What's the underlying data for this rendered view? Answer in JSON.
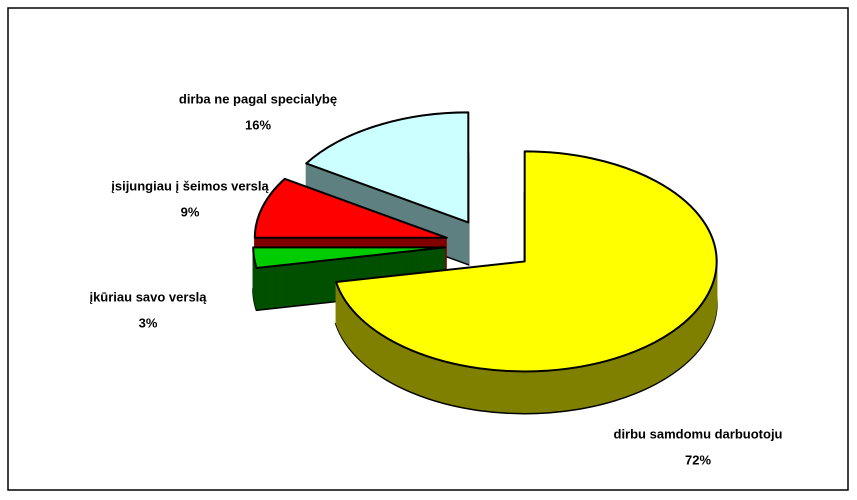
{
  "chart_data": {
    "type": "pie",
    "categories": [
      "dirbu samdomu darbuotoju",
      "įkūriau savo verslą",
      "įsijungiau į šeimos verslą",
      "dirba ne pagal specialybę"
    ],
    "values": [
      72,
      3,
      9,
      16
    ],
    "value_labels": [
      "72%",
      "3%",
      "9%",
      "16%"
    ],
    "colors": [
      "#ffff00",
      "#00cc00",
      "#ff0000",
      "#ccffff"
    ],
    "side_colors": [
      "#808000",
      "#005000",
      "#800000",
      "#5f8080"
    ]
  }
}
